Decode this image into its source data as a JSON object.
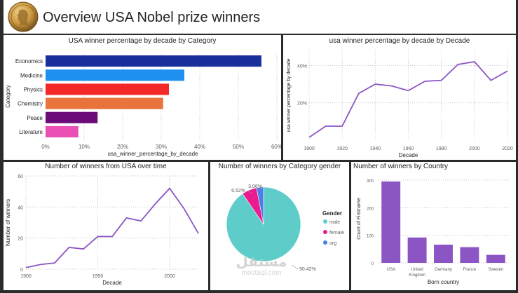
{
  "header": {
    "title": "Overview USA Nobel prize winners",
    "logo_icon": "nobel-medal-icon"
  },
  "watermark": {
    "arabic": "مستقل",
    "latin": "mostaql.com"
  },
  "chart_data": [
    {
      "id": "category-bar",
      "type": "bar",
      "orientation": "horizontal",
      "title": "USA winner percentage by decade by Category",
      "xlabel": "usa_winner_percentage_by_decade",
      "ylabel": "Category",
      "categories": [
        "Economics",
        "Medicine",
        "Physics",
        "Chemistry",
        "Peace",
        "Literature"
      ],
      "values": [
        56,
        36,
        32,
        30.5,
        13.5,
        8.5
      ],
      "colors": [
        "#1a2f9c",
        "#1e90f0",
        "#f42828",
        "#e8743b",
        "#6b0a78",
        "#e94fb4"
      ],
      "xlim": [
        0,
        60
      ],
      "ticks": [
        0,
        10,
        20,
        30,
        40,
        50,
        60
      ],
      "tick_labels": [
        "0%",
        "10%",
        "20%",
        "30%",
        "40%",
        "50%",
        "60%"
      ],
      "grid": true
    },
    {
      "id": "decade-line",
      "type": "line",
      "title": "usa winner percentage by decade by Decade",
      "xlabel": "Decade",
      "ylabel": "usa winner percentage by decade",
      "x": [
        1900,
        1910,
        1920,
        1930,
        1940,
        1950,
        1960,
        1970,
        1980,
        1990,
        2000,
        2010,
        2020
      ],
      "y": [
        1.5,
        7.5,
        7.5,
        25,
        30,
        29,
        26.5,
        31.5,
        32,
        40.5,
        42,
        32,
        37
      ],
      "xticks": [
        1900,
        1920,
        1940,
        1960,
        1980,
        2000,
        2020
      ],
      "yticks": [
        20,
        40
      ],
      "ytick_labels": [
        "20%",
        "40%"
      ],
      "ylim": [
        0,
        48
      ],
      "color": "#8b55c4",
      "grid": true
    },
    {
      "id": "winners-line",
      "type": "line",
      "title": "Number of winners from USA over time",
      "xlabel": "Decade",
      "ylabel": "Number of winners",
      "x": [
        1900,
        1910,
        1920,
        1930,
        1940,
        1950,
        1960,
        1970,
        1980,
        1990,
        2000,
        2010,
        2020
      ],
      "y": [
        1,
        3,
        4,
        14,
        13,
        21,
        21,
        33,
        31,
        42,
        52,
        39,
        23
      ],
      "xticks": [
        1900,
        1950,
        2000
      ],
      "yticks": [
        0,
        20,
        40,
        60
      ],
      "ylim": [
        0,
        60
      ],
      "color": "#8b55c4",
      "grid": true
    },
    {
      "id": "gender-pie",
      "type": "pie",
      "title": "Number of winners by Category gender",
      "legend_title": "Gender",
      "legend_position": "right",
      "labels": [
        "male",
        "female",
        "org"
      ],
      "values": [
        90.42,
        6.52,
        3.06
      ],
      "value_labels": [
        "90.42%",
        "6.52%",
        "3.06%"
      ],
      "colors": [
        "#5ecdc9",
        "#ea1a8f",
        "#4b7fe8"
      ]
    },
    {
      "id": "country-bar",
      "type": "bar",
      "title": "Number of winners by Country",
      "xlabel": "Born country",
      "ylabel": "Count of Firstname",
      "categories": [
        "USA",
        "United Kingdom",
        "Germany",
        "France",
        "Sweden"
      ],
      "values": [
        295,
        92,
        66,
        57,
        29
      ],
      "yticks": [
        0,
        100,
        200,
        300
      ],
      "ylim": [
        0,
        320
      ],
      "color": "#8b55c4",
      "grid": true
    }
  ]
}
